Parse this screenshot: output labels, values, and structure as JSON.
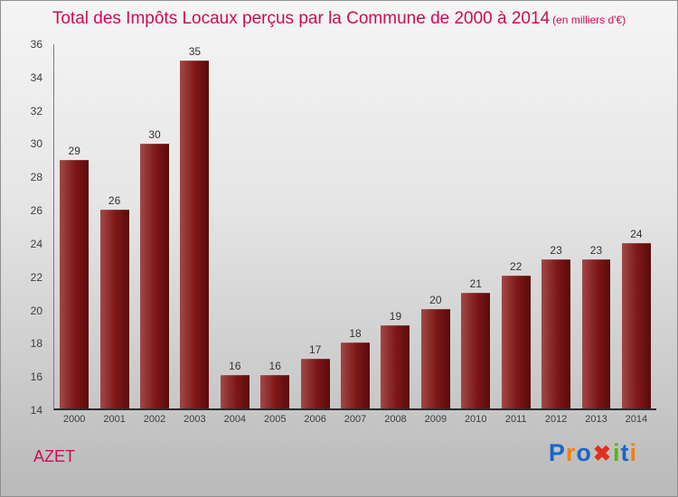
{
  "title": {
    "main": "Total des Impôts Locaux perçus par la Commune de 2000 à 2014",
    "unit": "(en milliers d'€)"
  },
  "footer": {
    "commune": "AZET"
  },
  "logo": {
    "name": "Proxiti",
    "letters": [
      {
        "char": "P",
        "color": "#1a66c9"
      },
      {
        "char": "r",
        "color": "#f08016"
      },
      {
        "char": "o",
        "color": "#1a66c9"
      },
      {
        "char": "✖",
        "color": "#e03020"
      },
      {
        "char": "i",
        "color": "#58b414"
      },
      {
        "char": "t",
        "color": "#1a66c9"
      },
      {
        "char": "i",
        "color": "#f08016"
      }
    ]
  },
  "colors": {
    "title": "#cf0a57",
    "bar_light": "#a14848",
    "bar_dark": "#5a0b0b",
    "axis_text": "#3c3c3c"
  },
  "chart_data": {
    "type": "bar",
    "title": "Total des Impôts Locaux perçus par la Commune de 2000 à 2014",
    "subtitle": "(en milliers d'€)",
    "categories": [
      "2000",
      "2001",
      "2002",
      "2003",
      "2004",
      "2005",
      "2006",
      "2007",
      "2008",
      "2009",
      "2010",
      "2011",
      "2012",
      "2013",
      "2014"
    ],
    "values": [
      29,
      26,
      30,
      35,
      16,
      16,
      17,
      18,
      19,
      20,
      21,
      22,
      23,
      23,
      24
    ],
    "xlabel": "",
    "ylabel": "",
    "ylim": [
      14,
      36
    ],
    "yticks": [
      14,
      16,
      18,
      20,
      22,
      24,
      26,
      28,
      30,
      32,
      34,
      36
    ],
    "grid": false,
    "legend": false,
    "annotation": "AZET"
  }
}
